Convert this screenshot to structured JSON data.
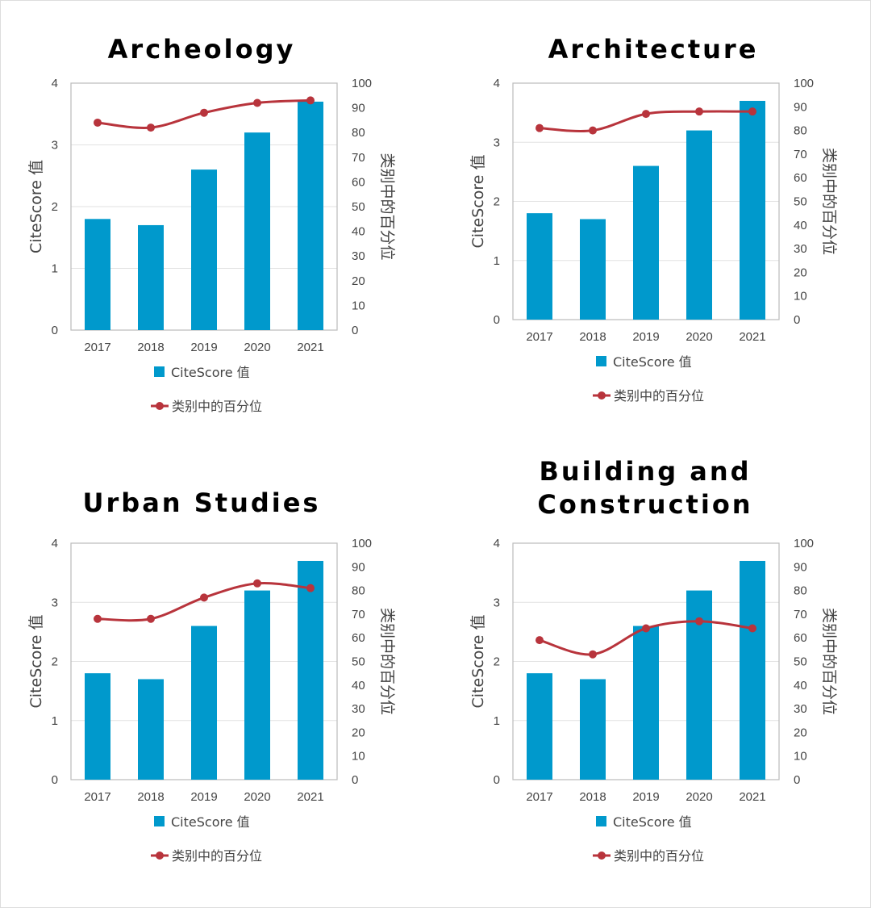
{
  "colors": {
    "bar": "#0099cc",
    "line": "#b8343c",
    "grid": "#e2e2e2",
    "axis": "#bbbbbb"
  },
  "chart_data": [
    {
      "type": "bar+line",
      "title": [
        "Archeology"
      ],
      "categories": [
        "2017",
        "2018",
        "2019",
        "2020",
        "2021"
      ],
      "ylabel": "CiteScore 值",
      "y2label": "类别中的百分位",
      "ylim": [
        0,
        4
      ],
      "yticks": [
        0,
        1,
        2,
        3,
        4
      ],
      "y2lim": [
        0,
        100
      ],
      "y2ticks": [
        0,
        10,
        20,
        30,
        40,
        50,
        60,
        70,
        80,
        90,
        100
      ],
      "series": [
        {
          "name": "CiteScore 值",
          "kind": "bar",
          "axis": "left",
          "values": [
            1.8,
            1.7,
            2.6,
            3.2,
            3.7
          ]
        },
        {
          "name": "类别中的百分位",
          "kind": "line",
          "axis": "right",
          "values": [
            84,
            82,
            88,
            92,
            93
          ]
        }
      ],
      "legend": "bottom",
      "grid": true
    },
    {
      "type": "bar+line",
      "title": [
        "Architecture"
      ],
      "categories": [
        "2017",
        "2018",
        "2019",
        "2020",
        "2021"
      ],
      "ylabel": "CiteScore 值",
      "y2label": "类别中的百分位",
      "ylim": [
        0,
        4
      ],
      "yticks": [
        0,
        1,
        2,
        3,
        4
      ],
      "y2lim": [
        0,
        100
      ],
      "y2ticks": [
        0,
        10,
        20,
        30,
        40,
        50,
        60,
        70,
        80,
        90,
        100
      ],
      "series": [
        {
          "name": "CiteScore 值",
          "kind": "bar",
          "axis": "left",
          "values": [
            1.8,
            1.7,
            2.6,
            3.2,
            3.7
          ]
        },
        {
          "name": "类别中的百分位",
          "kind": "line",
          "axis": "right",
          "values": [
            81,
            80,
            87,
            88,
            88
          ]
        }
      ],
      "legend": "bottom",
      "grid": true
    },
    {
      "type": "bar+line",
      "title": [
        "Urban Studies"
      ],
      "categories": [
        "2017",
        "2018",
        "2019",
        "2020",
        "2021"
      ],
      "ylabel": "CiteScore 值",
      "y2label": "类别中的百分位",
      "ylim": [
        0,
        4
      ],
      "yticks": [
        0,
        1,
        2,
        3,
        4
      ],
      "y2lim": [
        0,
        100
      ],
      "y2ticks": [
        0,
        10,
        20,
        30,
        40,
        50,
        60,
        70,
        80,
        90,
        100
      ],
      "series": [
        {
          "name": "CiteScore 值",
          "kind": "bar",
          "axis": "left",
          "values": [
            1.8,
            1.7,
            2.6,
            3.2,
            3.7
          ]
        },
        {
          "name": "类别中的百分位",
          "kind": "line",
          "axis": "right",
          "values": [
            68,
            68,
            77,
            83,
            81
          ]
        }
      ],
      "legend": "bottom",
      "grid": true
    },
    {
      "type": "bar+line",
      "title": [
        "Building and",
        "Construction"
      ],
      "categories": [
        "2017",
        "2018",
        "2019",
        "2020",
        "2021"
      ],
      "ylabel": "CiteScore 值",
      "y2label": "类别中的百分位",
      "ylim": [
        0,
        4
      ],
      "yticks": [
        0,
        1,
        2,
        3,
        4
      ],
      "y2lim": [
        0,
        100
      ],
      "y2ticks": [
        0,
        10,
        20,
        30,
        40,
        50,
        60,
        70,
        80,
        90,
        100
      ],
      "series": [
        {
          "name": "CiteScore 值",
          "kind": "bar",
          "axis": "left",
          "values": [
            1.8,
            1.7,
            2.6,
            3.2,
            3.7
          ]
        },
        {
          "name": "类别中的百分位",
          "kind": "line",
          "axis": "right",
          "values": [
            59,
            53,
            64,
            67,
            64
          ]
        }
      ],
      "legend": "bottom",
      "grid": true
    }
  ]
}
